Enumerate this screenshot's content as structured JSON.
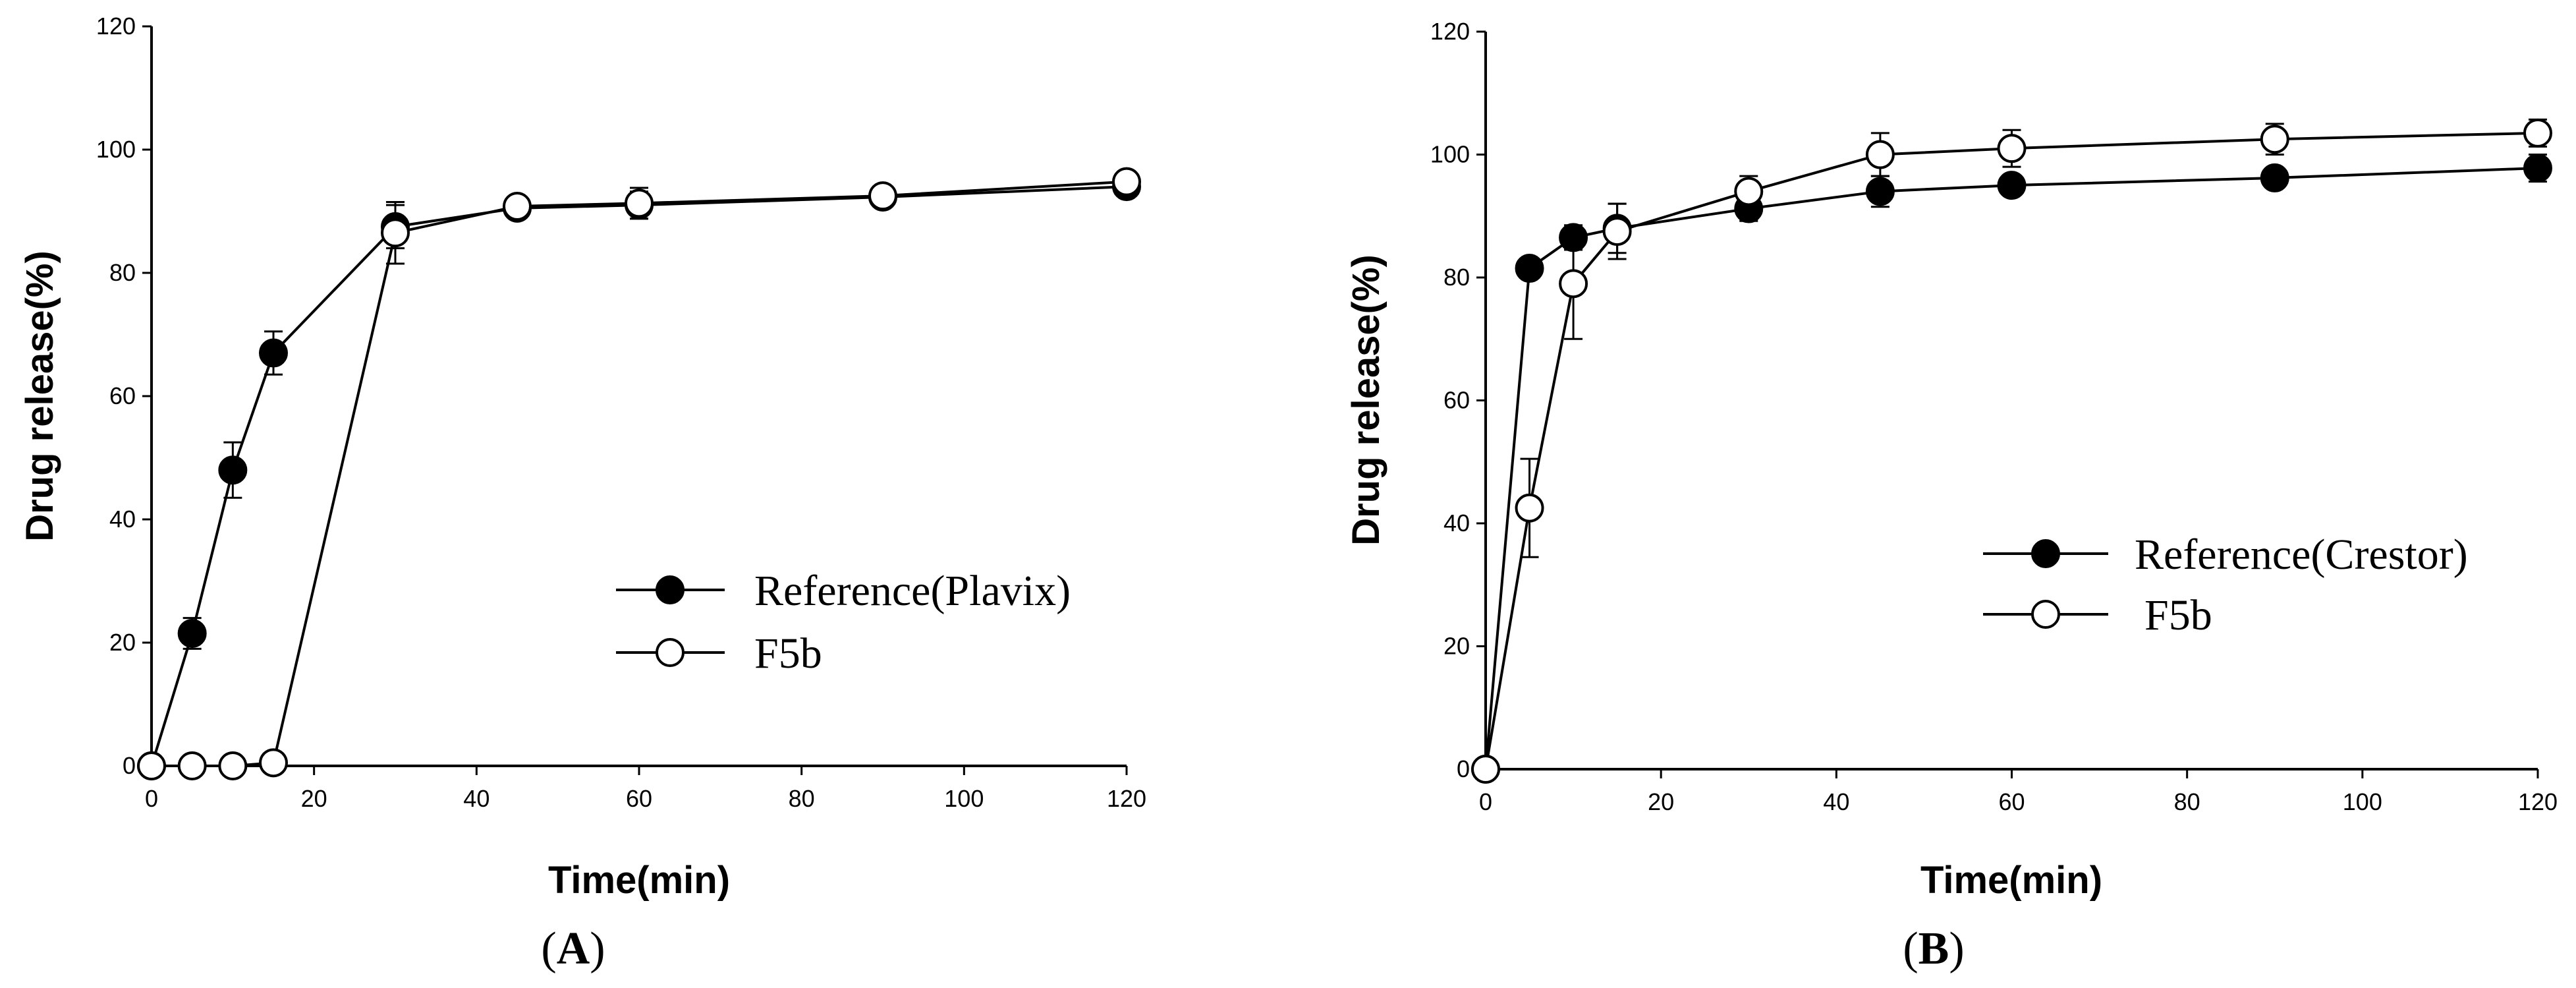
{
  "chart_data": [
    {
      "type": "line",
      "panel_label": "A",
      "xlabel": "Time(min)",
      "ylabel": "Drug release(%)",
      "xlim": [
        0,
        120
      ],
      "ylim": [
        0,
        120
      ],
      "xticks": [
        0,
        20,
        40,
        60,
        80,
        100,
        120
      ],
      "yticks": [
        0,
        20,
        40,
        60,
        80,
        100,
        120
      ],
      "legend_position": "center-right",
      "series": [
        {
          "name": "Reference(Plavix)",
          "marker": "filled-circle",
          "x": [
            0,
            5,
            10,
            15,
            30,
            45,
            60,
            90,
            120
          ],
          "y": [
            0,
            21.5,
            48,
            67,
            87.5,
            90.5,
            91,
            92.3,
            94
          ],
          "err": [
            0,
            2.5,
            4.5,
            3.5,
            3.5,
            1.2,
            2.2,
            1.2,
            1.5
          ]
        },
        {
          "name": "F5b",
          "marker": "open-circle",
          "x": [
            0,
            5,
            10,
            15,
            30,
            45,
            60,
            90,
            120
          ],
          "y": [
            0,
            0,
            0,
            0.5,
            86.5,
            90.8,
            91.3,
            92.5,
            94.8
          ],
          "err": [
            0,
            0,
            0,
            0.5,
            5,
            1.5,
            2.5,
            1.2,
            1.2
          ]
        }
      ]
    },
    {
      "type": "line",
      "panel_label": "B",
      "xlabel": "Time(min)",
      "ylabel": "Drug release(%)",
      "xlim": [
        0,
        120
      ],
      "ylim": [
        0,
        120
      ],
      "xticks": [
        0,
        20,
        40,
        60,
        80,
        100,
        120
      ],
      "yticks": [
        0,
        20,
        40,
        60,
        80,
        100,
        120
      ],
      "legend_position": "center-right",
      "series": [
        {
          "name": "Reference(Crestor)",
          "marker": "filled-circle",
          "x": [
            0,
            5,
            10,
            15,
            30,
            45,
            60,
            90,
            120
          ],
          "y": [
            0,
            81.5,
            86.5,
            88,
            91.2,
            94,
            95,
            96.2,
            97.8
          ],
          "err": [
            0,
            1.5,
            2,
            4,
            2,
            2.5,
            1.5,
            1.5,
            2.2
          ]
        },
        {
          "name": "F5b",
          "marker": "open-circle",
          "x": [
            0,
            5,
            10,
            15,
            30,
            45,
            60,
            90,
            120
          ],
          "y": [
            0,
            42.5,
            79,
            87.5,
            94,
            100,
            101,
            102.5,
            103.5
          ],
          "err": [
            0,
            8,
            9,
            4.5,
            2.5,
            3.5,
            3,
            2.5,
            2.2
          ]
        }
      ]
    }
  ]
}
